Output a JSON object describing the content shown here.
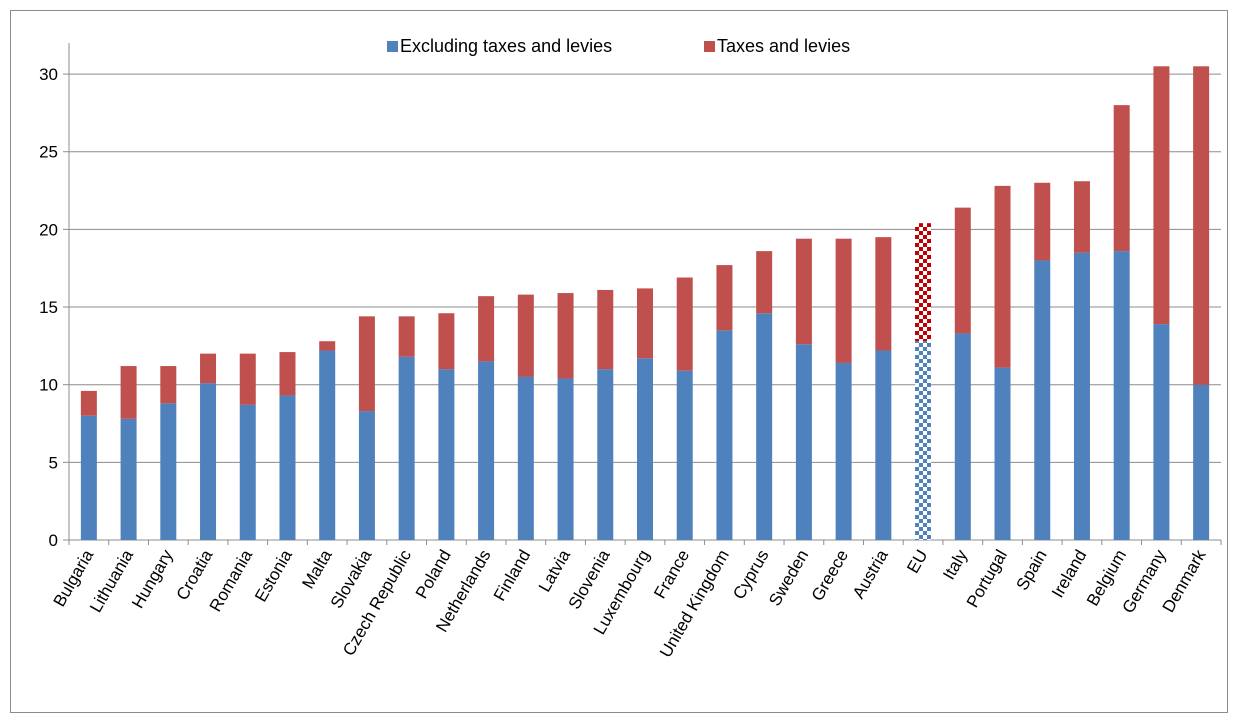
{
  "chart_data": {
    "type": "bar",
    "stacked": true,
    "categories": [
      "Bulgaria",
      "Lithuania",
      "Hungary",
      "Croatia",
      "Romania",
      "Estonia",
      "Malta",
      "Slovakia",
      "Czech Republic",
      "Poland",
      "Netherlands",
      "Finland",
      "Latvia",
      "Slovenia",
      "Luxembourg",
      "France",
      "United Kingdom",
      "Cyprus",
      "Sweden",
      "Greece",
      "Austria",
      "EU",
      "Italy",
      "Portugal",
      "Spain",
      "Ireland",
      "Belgium",
      "Germany",
      "Denmark"
    ],
    "series": [
      {
        "name": "Excluding taxes and levies",
        "color": "#4f81bd",
        "values": [
          8.0,
          7.8,
          8.8,
          10.1,
          8.7,
          9.3,
          12.2,
          8.3,
          11.8,
          11.0,
          11.5,
          10.5,
          10.4,
          11.0,
          11.7,
          10.9,
          13.5,
          14.6,
          12.6,
          11.4,
          12.2,
          12.8,
          13.3,
          11.1,
          18.0,
          18.5,
          18.6,
          13.9,
          10.0
        ]
      },
      {
        "name": "Taxes and levies",
        "color": "#c0504d",
        "values": [
          1.6,
          3.4,
          2.4,
          1.9,
          3.3,
          2.8,
          0.6,
          6.1,
          2.6,
          3.6,
          4.2,
          5.3,
          5.5,
          5.1,
          4.5,
          6.0,
          4.2,
          4.0,
          6.8,
          8.0,
          7.3,
          7.6,
          8.1,
          11.7,
          5.0,
          4.6,
          9.4,
          16.6,
          20.5
        ]
      }
    ],
    "highlight_category": "EU",
    "highlight_pattern": "checkerboard",
    "ylim": [
      0,
      32
    ],
    "yticks": [
      0,
      5,
      10,
      15,
      20,
      25,
      30
    ],
    "xlabel": "",
    "ylabel": "",
    "title": "",
    "grid": true,
    "legend_position": "top-center"
  }
}
